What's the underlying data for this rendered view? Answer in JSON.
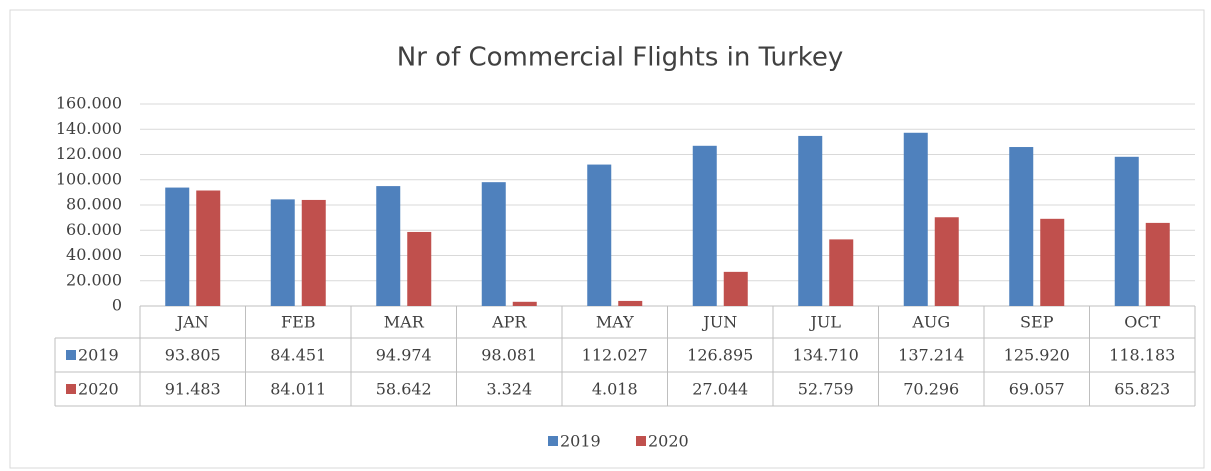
{
  "chart_data": {
    "type": "bar",
    "title": "Nr of Commercial Flights in Turkey",
    "categories": [
      "JAN",
      "FEB",
      "MAR",
      "APR",
      "MAY",
      "JUN",
      "JUL",
      "AUG",
      "SEP",
      "OCT"
    ],
    "series": [
      {
        "name": "2019",
        "color": "#4f81bd",
        "values": [
          93805,
          84451,
          94974,
          98081,
          112027,
          126895,
          134710,
          137214,
          125920,
          118183
        ],
        "value_labels": [
          "93.805",
          "84.451",
          "94.974",
          "98.081",
          "112.027",
          "126.895",
          "134.710",
          "137.214",
          "125.920",
          "118.183"
        ]
      },
      {
        "name": "2020",
        "color": "#c0504d",
        "values": [
          91483,
          84011,
          58642,
          3324,
          4018,
          27044,
          52759,
          70296,
          69057,
          65823
        ],
        "value_labels": [
          "91.483",
          "84.011",
          "58.642",
          "3.324",
          "4.018",
          "27.044",
          "52.759",
          "70.296",
          "69.057",
          "65.823"
        ]
      }
    ],
    "ylim": [
      0,
      160000
    ],
    "yticks": [
      0,
      {
        "value": 20000,
        "label": "20.000"
      },
      {
        "value": 40000,
        "label": "40.000"
      },
      {
        "value": 60000,
        "label": "60.000"
      },
      {
        "value": 80000,
        "label": "80.000"
      },
      {
        "value": 100000,
        "label": "100.000"
      },
      {
        "value": 120000,
        "label": "120.000"
      },
      {
        "value": 140000,
        "label": "140.000"
      },
      {
        "value": 160000,
        "label": "160.000"
      }
    ],
    "grid": true,
    "legend": "bottom"
  }
}
